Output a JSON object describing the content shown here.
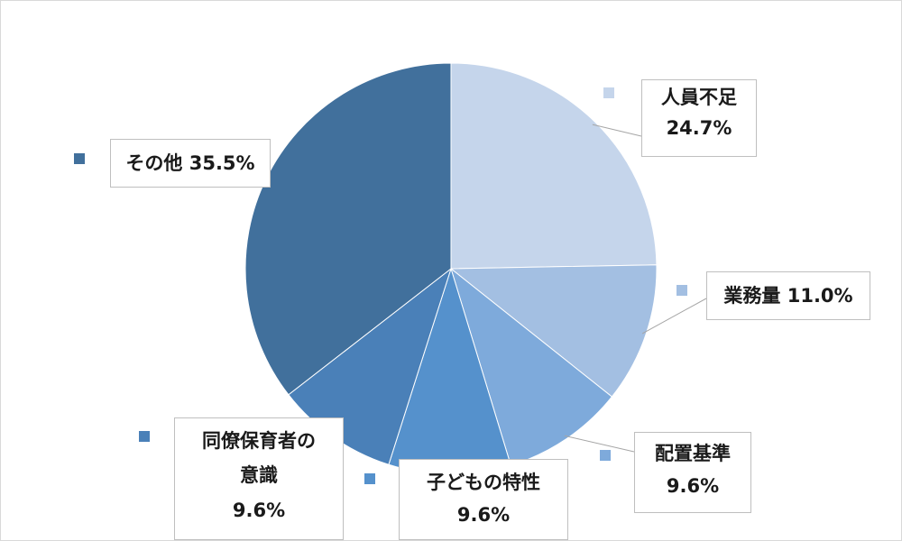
{
  "chart_data": {
    "type": "pie",
    "title": "",
    "start_angle_deg": 0,
    "direction": "clockwise",
    "slices": [
      {
        "label_lines": [
          "人員不足",
          "24.7%"
        ],
        "category": "人員不足",
        "value": 24.7,
        "value_text": "24.7%",
        "color": "#c5d5eb"
      },
      {
        "label_lines": [
          "業務量 11.0%"
        ],
        "category": "業務量",
        "value": 11.0,
        "value_text": "11.0%",
        "color": "#a3bfe2"
      },
      {
        "label_lines": [
          "配置基準",
          "9.6%"
        ],
        "category": "配置基準",
        "value": 9.6,
        "value_text": "9.6%",
        "color": "#7eaadb"
      },
      {
        "label_lines": [
          "子どもの特性",
          "9.6%"
        ],
        "category": "子どもの特性",
        "value": 9.6,
        "value_text": "9.6%",
        "color": "#5591cc"
      },
      {
        "label_lines": [
          "同僚保育者の",
          "意識",
          "9.6%"
        ],
        "category": "同僚保育者の意識",
        "value": 9.6,
        "value_text": "9.6%",
        "color": "#4a80b8"
      },
      {
        "label_lines": [
          "その他 35.5%"
        ],
        "category": "その他",
        "value": 35.5,
        "value_text": "35.5%",
        "color": "#41709c"
      }
    ]
  }
}
